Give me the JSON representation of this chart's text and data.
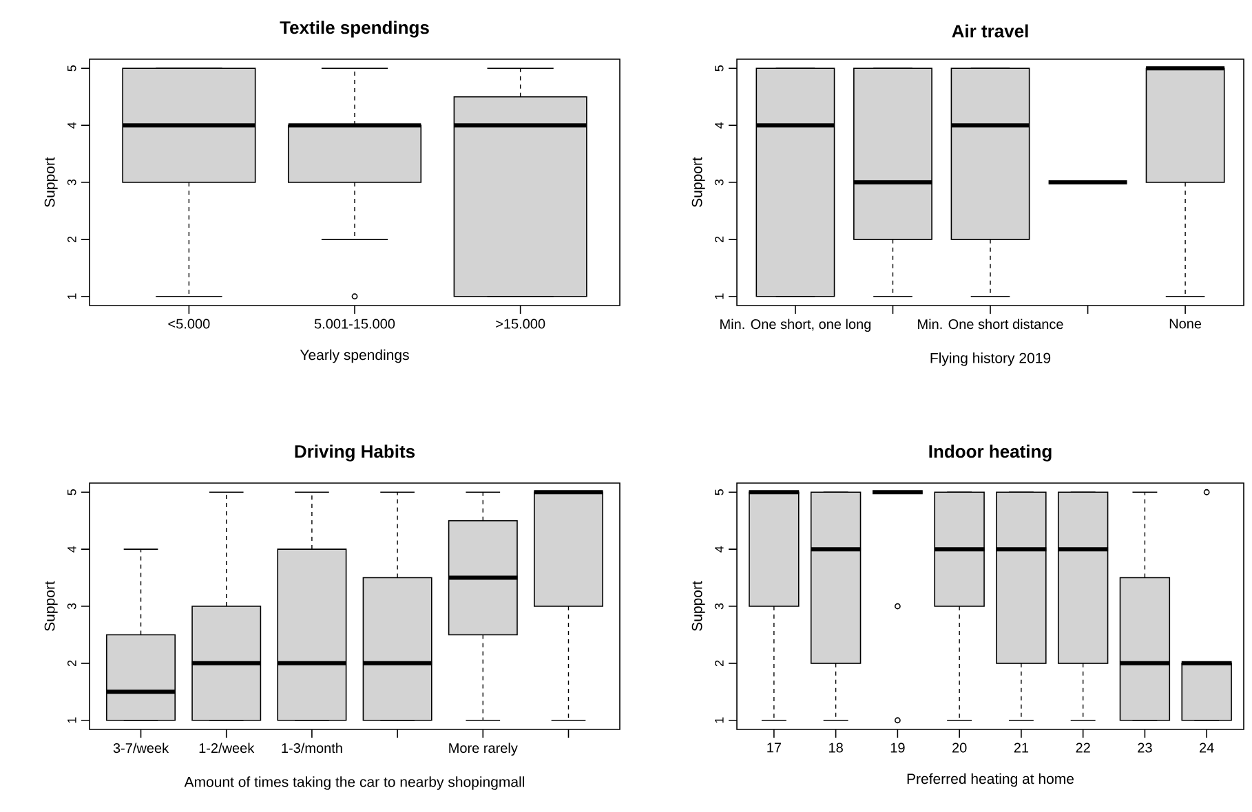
{
  "chart_data": [
    {
      "type": "box",
      "title": "Textile spendings",
      "xlabel": "Yearly spendings",
      "ylabel": "Support",
      "categories": [
        "<5.000",
        "5.001-15.000",
        ">15.000"
      ],
      "boxes": [
        {
          "low": 1,
          "q1": 3,
          "median": 4,
          "q3": 5,
          "high": 5
        },
        {
          "low": 2,
          "q1": 3,
          "median": 4,
          "q3": 4,
          "high": 5,
          "outliers": [
            1
          ]
        },
        {
          "low": 1,
          "q1": 1,
          "median": 4,
          "q3": 4.5,
          "high": 5
        }
      ],
      "ylim": [
        0.84,
        5.16
      ],
      "yticks": [
        1,
        2,
        3,
        4,
        5
      ]
    },
    {
      "type": "box",
      "title": "Air travel",
      "xlabel": "Flying history 2019",
      "ylabel": "Support",
      "categories": [
        "Min. One short, one long",
        null,
        "Min. One short distance",
        null,
        "None"
      ],
      "boxes": [
        {
          "low": 1,
          "q1": 1,
          "median": 4,
          "q3": 5,
          "high": 5
        },
        {
          "low": 1,
          "q1": 2,
          "median": 3,
          "q3": 5,
          "high": 5
        },
        {
          "low": 1,
          "q1": 2,
          "median": 4,
          "q3": 5,
          "high": 5
        },
        {
          "low": 3,
          "q1": 3,
          "median": 3,
          "q3": 3,
          "high": 3
        },
        {
          "low": 1,
          "q1": 3,
          "median": 5,
          "q3": 5,
          "high": 5
        }
      ],
      "ylim": [
        0.84,
        5.16
      ],
      "yticks": [
        1,
        2,
        3,
        4,
        5
      ]
    },
    {
      "type": "box",
      "title": "Driving Habits",
      "xlabel": "Amount of times taking the car to nearby shopingmall",
      "ylabel": "Support",
      "categories": [
        "3-7/week",
        "1-2/week",
        "1-3/month",
        null,
        "More rarely",
        null
      ],
      "boxes": [
        {
          "low": 1,
          "q1": 1,
          "median": 1.5,
          "q3": 2.5,
          "high": 4
        },
        {
          "low": 1,
          "q1": 1,
          "median": 2,
          "q3": 3,
          "high": 5
        },
        {
          "low": 1,
          "q1": 1,
          "median": 2,
          "q3": 4,
          "high": 5
        },
        {
          "low": 1,
          "q1": 1,
          "median": 2,
          "q3": 3.5,
          "high": 5
        },
        {
          "low": 1,
          "q1": 2.5,
          "median": 3.5,
          "q3": 4.5,
          "high": 5
        },
        {
          "low": 1,
          "q1": 3,
          "median": 5,
          "q3": 5,
          "high": 5
        }
      ],
      "ylim": [
        0.84,
        5.16
      ],
      "yticks": [
        1,
        2,
        3,
        4,
        5
      ]
    },
    {
      "type": "box",
      "title": "Indoor heating",
      "xlabel": "Preferred heating at home",
      "ylabel": "Support",
      "categories": [
        "17",
        "18",
        "19",
        "20",
        "21",
        "22",
        "23",
        "24"
      ],
      "boxes": [
        {
          "low": 1,
          "q1": 3,
          "median": 5,
          "q3": 5,
          "high": 5
        },
        {
          "low": 1,
          "q1": 2,
          "median": 4,
          "q3": 5,
          "high": 5
        },
        {
          "low": 5,
          "q1": 5,
          "median": 5,
          "q3": 5,
          "high": 5,
          "outliers": [
            3,
            1
          ]
        },
        {
          "low": 1,
          "q1": 3,
          "median": 4,
          "q3": 5,
          "high": 5
        },
        {
          "low": 1,
          "q1": 2,
          "median": 4,
          "q3": 5,
          "high": 5
        },
        {
          "low": 1,
          "q1": 2,
          "median": 4,
          "q3": 5,
          "high": 5
        },
        {
          "low": 1,
          "q1": 1,
          "median": 2,
          "q3": 3.5,
          "high": 5
        },
        {
          "low": 1,
          "q1": 1,
          "median": 2,
          "q3": 2,
          "high": 2,
          "outliers": [
            5
          ]
        }
      ],
      "ylim": [
        0.84,
        5.16
      ],
      "yticks": [
        1,
        2,
        3,
        4,
        5
      ]
    }
  ]
}
